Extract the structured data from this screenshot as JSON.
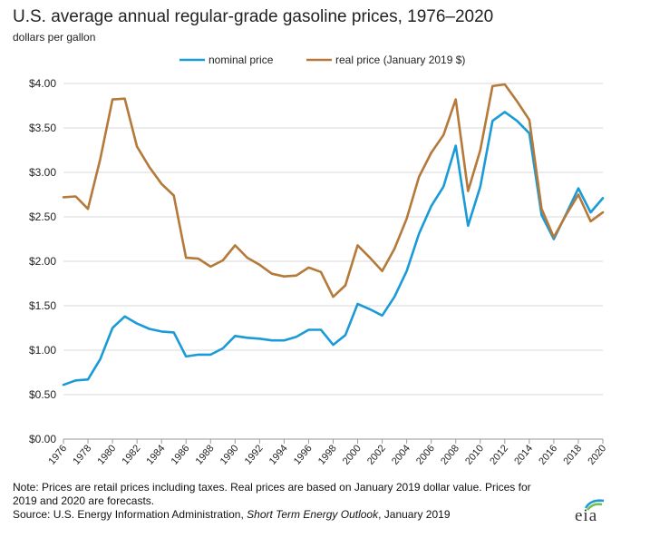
{
  "header": {
    "title": "U.S. average annual regular-grade gasoline prices, 1976–2020",
    "subtitle": "dollars per gallon"
  },
  "notes": {
    "note": "Note: Prices are retail prices including taxes. Real prices are based on January 2019 dollar value. Prices for 2019 and 2020 are forecasts.",
    "source_prefix": "Source: U.S. Energy Information Administration,",
    "source_title": "Short Term Energy Outlook",
    "source_suffix": ", January 2019"
  },
  "logo": {
    "text": "eia"
  },
  "colors": {
    "nominal": "#1a9bd7",
    "real": "#b5793a",
    "grid": "#d9d9d9",
    "axis": "#9a9a9a"
  },
  "chart_data": {
    "type": "line",
    "title": "U.S. average annual regular-grade gasoline prices, 1976–2020",
    "ylabel": "dollars per gallon",
    "xlabel": "",
    "xlim": [
      1976,
      2020
    ],
    "ylim": [
      0,
      4
    ],
    "yticks": [
      0,
      0.5,
      1.0,
      1.5,
      2.0,
      2.5,
      3.0,
      3.5,
      4.0
    ],
    "ytick_labels": [
      "$0.00",
      "$0.50",
      "$1.00",
      "$1.50",
      "$2.00",
      "$2.50",
      "$3.00",
      "$3.50",
      "$4.00"
    ],
    "xticks": [
      1976,
      1978,
      1980,
      1982,
      1984,
      1986,
      1988,
      1990,
      1992,
      1994,
      1996,
      1998,
      2000,
      2002,
      2004,
      2006,
      2008,
      2010,
      2012,
      2014,
      2016,
      2018,
      2020
    ],
    "xtick_labels": [
      "1976",
      "1978",
      "1980",
      "1982",
      "1984",
      "1986",
      "1988",
      "1990",
      "1992",
      "1994",
      "1996",
      "1998",
      "2000",
      "2002",
      "2004",
      "2006",
      "2008",
      "2010",
      "2012",
      "2014",
      "2016",
      "2018",
      "2020"
    ],
    "grid": true,
    "legend_position": "top-center",
    "x": [
      1976,
      1977,
      1978,
      1979,
      1980,
      1981,
      1982,
      1983,
      1984,
      1985,
      1986,
      1987,
      1988,
      1989,
      1990,
      1991,
      1992,
      1993,
      1994,
      1995,
      1996,
      1997,
      1998,
      1999,
      2000,
      2001,
      2002,
      2003,
      2004,
      2005,
      2006,
      2007,
      2008,
      2009,
      2010,
      2011,
      2012,
      2013,
      2014,
      2015,
      2016,
      2017,
      2018,
      2019,
      2020
    ],
    "series": [
      {
        "name": "nominal price",
        "color": "#1a9bd7",
        "values": [
          0.61,
          0.66,
          0.67,
          0.9,
          1.25,
          1.38,
          1.3,
          1.24,
          1.21,
          1.2,
          0.93,
          0.95,
          0.95,
          1.02,
          1.16,
          1.14,
          1.13,
          1.11,
          1.11,
          1.15,
          1.23,
          1.23,
          1.06,
          1.17,
          1.52,
          1.46,
          1.39,
          1.6,
          1.89,
          2.31,
          2.62,
          2.84,
          3.3,
          2.4,
          2.84,
          3.58,
          3.68,
          3.58,
          3.44,
          2.52,
          2.25,
          2.53,
          2.82,
          2.55,
          2.71
        ]
      },
      {
        "name": "real price (January 2019 $)",
        "color": "#b5793a",
        "values": [
          2.72,
          2.73,
          2.59,
          3.15,
          3.82,
          3.83,
          3.29,
          3.06,
          2.87,
          2.74,
          2.04,
          2.03,
          1.94,
          2.01,
          2.18,
          2.04,
          1.96,
          1.86,
          1.83,
          1.84,
          1.93,
          1.88,
          1.6,
          1.73,
          2.18,
          2.04,
          1.89,
          2.14,
          2.48,
          2.95,
          3.22,
          3.42,
          3.82,
          2.79,
          3.25,
          3.97,
          3.99,
          3.8,
          3.59,
          2.59,
          2.27,
          2.52,
          2.75,
          2.45,
          2.55
        ]
      }
    ]
  }
}
